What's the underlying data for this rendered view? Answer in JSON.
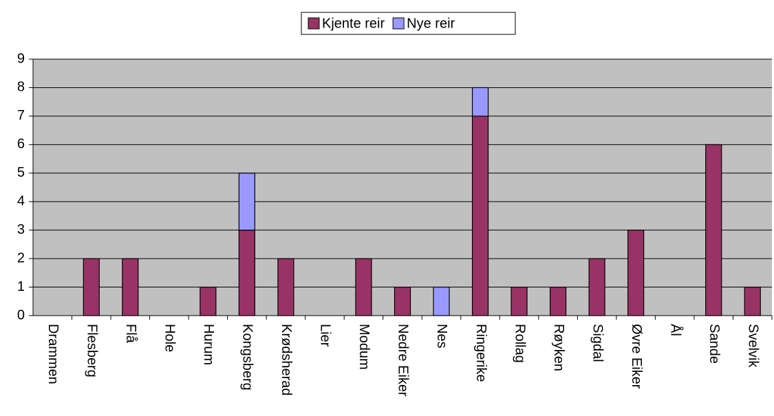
{
  "chart_data": {
    "type": "stacked_bar",
    "categories": [
      "Drammen",
      "Flesberg",
      "Flå",
      "Hole",
      "Hurum",
      "Kongsberg",
      "Krødsherad",
      "Lier",
      "Modum",
      "Nedre Eiker",
      "Nes",
      "Ringerike",
      "Rollag",
      "Røyken",
      "Sigdal",
      "Øvre Eiker",
      "Ål",
      "Sande",
      "Svelvik"
    ],
    "series": [
      {
        "name": "Kjente reir",
        "color": "#993366",
        "values": [
          0,
          2,
          2,
          0,
          1,
          3,
          2,
          0,
          2,
          1,
          0,
          7,
          1,
          1,
          2,
          3,
          0,
          6,
          1
        ]
      },
      {
        "name": "Nye reir",
        "color": "#9999ff",
        "values": [
          0,
          0,
          0,
          0,
          0,
          2,
          0,
          0,
          0,
          0,
          1,
          1,
          0,
          0,
          0,
          0,
          0,
          0,
          0
        ]
      }
    ],
    "ylim": [
      0,
      9
    ],
    "yticks": [
      0,
      1,
      2,
      3,
      4,
      5,
      6,
      7,
      8,
      9
    ],
    "grid": true,
    "legend": "top"
  }
}
